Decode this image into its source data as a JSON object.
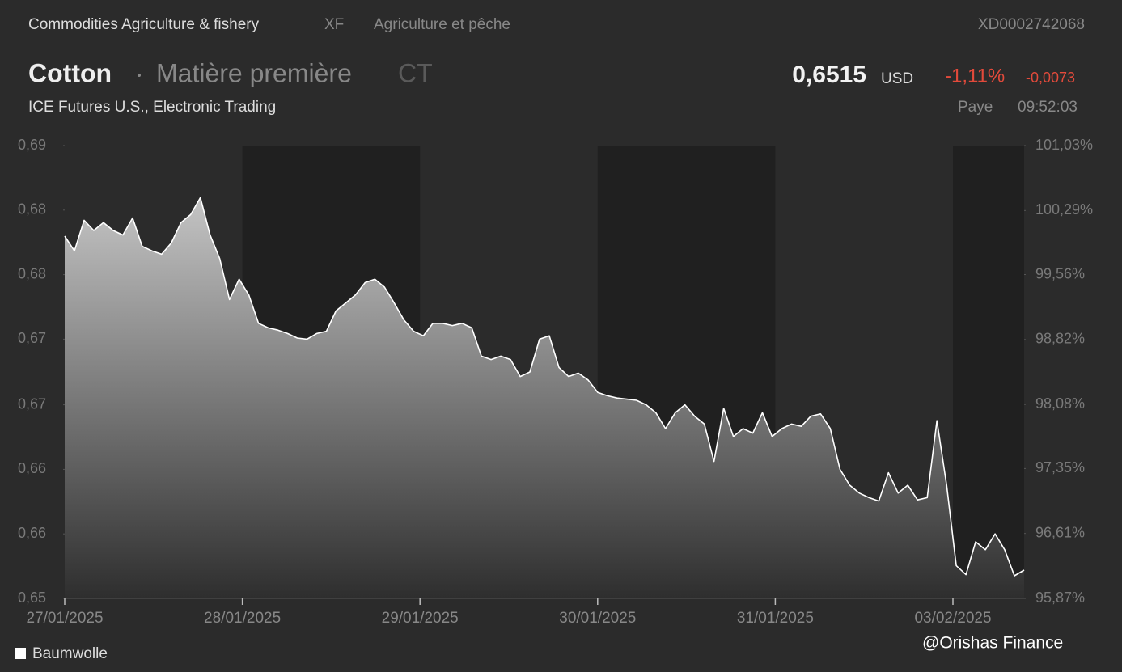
{
  "header": {
    "breadcrumb": "Commodities Agriculture & fishery",
    "exchange": "XF",
    "sector": "Agriculture et pêche",
    "isin": "XD0002742068",
    "name": "Cotton",
    "kind": "Matière première",
    "symbol": "CT",
    "price": "0,6515",
    "currency": "USD",
    "change_pct": "-1,11%",
    "change_abs": "-0,0073",
    "market": "ICE Futures U.S., Electronic Trading",
    "status": "Paye",
    "time": "09:52:03"
  },
  "chart_data": {
    "type": "area",
    "xticks": [
      "27/01/2025",
      "28/01/2025",
      "29/01/2025",
      "30/01/2025",
      "31/01/2025",
      "03/02/2025"
    ],
    "ylim": [
      0.65,
      0.69
    ],
    "yticks": [
      {
        "value": 0.65,
        "label": "0,65"
      },
      {
        "value": 0.6557,
        "label": "0,66"
      },
      {
        "value": 0.6614,
        "label": "0,66"
      },
      {
        "value": 0.6671,
        "label": "0,67"
      },
      {
        "value": 0.6729,
        "label": "0,67"
      },
      {
        "value": 0.6786,
        "label": "0,68"
      },
      {
        "value": 0.6843,
        "label": "0,68"
      },
      {
        "value": 0.69,
        "label": "0,69"
      }
    ],
    "y2lim": [
      95.87,
      101.03
    ],
    "y2ticks": [
      {
        "value": 95.87,
        "label": "95,87%"
      },
      {
        "value": 96.61,
        "label": "96,61%"
      },
      {
        "value": 97.35,
        "label": "97,35%"
      },
      {
        "value": 98.08,
        "label": "98,08%"
      },
      {
        "value": 98.82,
        "label": "98,82%"
      },
      {
        "value": 99.56,
        "label": "99,56%"
      },
      {
        "value": 100.29,
        "label": "100,29%"
      },
      {
        "value": 101.03,
        "label": "101,03%"
      }
    ],
    "series": [
      {
        "name": "Baumwolle",
        "color": "#ffffff",
        "values": [
          0.682,
          0.6807,
          0.6834,
          0.6825,
          0.6832,
          0.6825,
          0.6821,
          0.6836,
          0.6811,
          0.6807,
          0.6804,
          0.6814,
          0.6832,
          0.6839,
          0.6854,
          0.6821,
          0.68,
          0.6764,
          0.6782,
          0.6768,
          0.6743,
          0.6739,
          0.6737,
          0.6734,
          0.673,
          0.6729,
          0.6734,
          0.6736,
          0.6754,
          0.6761,
          0.6768,
          0.6779,
          0.6782,
          0.6775,
          0.6761,
          0.6746,
          0.6736,
          0.6732,
          0.6743,
          0.6743,
          0.6741,
          0.6743,
          0.6739,
          0.6714,
          0.6711,
          0.6714,
          0.6711,
          0.6696,
          0.67,
          0.6729,
          0.6732,
          0.6704,
          0.6696,
          0.6699,
          0.6693,
          0.6682,
          0.6679,
          0.6677,
          0.6676,
          0.6675,
          0.6671,
          0.6664,
          0.665,
          0.6664,
          0.6671,
          0.6661,
          0.6654,
          0.6621,
          0.6668,
          0.6643,
          0.665,
          0.6646,
          0.6664,
          0.6643,
          0.665,
          0.6654,
          0.6652,
          0.6661,
          0.6663,
          0.665,
          0.6614,
          0.66,
          0.6593,
          0.6589,
          0.6586,
          0.6611,
          0.6593,
          0.66,
          0.6587,
          0.6589,
          0.6657,
          0.66,
          0.6529,
          0.6521,
          0.655,
          0.6543,
          0.6557,
          0.6543,
          0.652,
          0.6525
        ]
      }
    ],
    "watermark": "@Orishas Finance"
  }
}
